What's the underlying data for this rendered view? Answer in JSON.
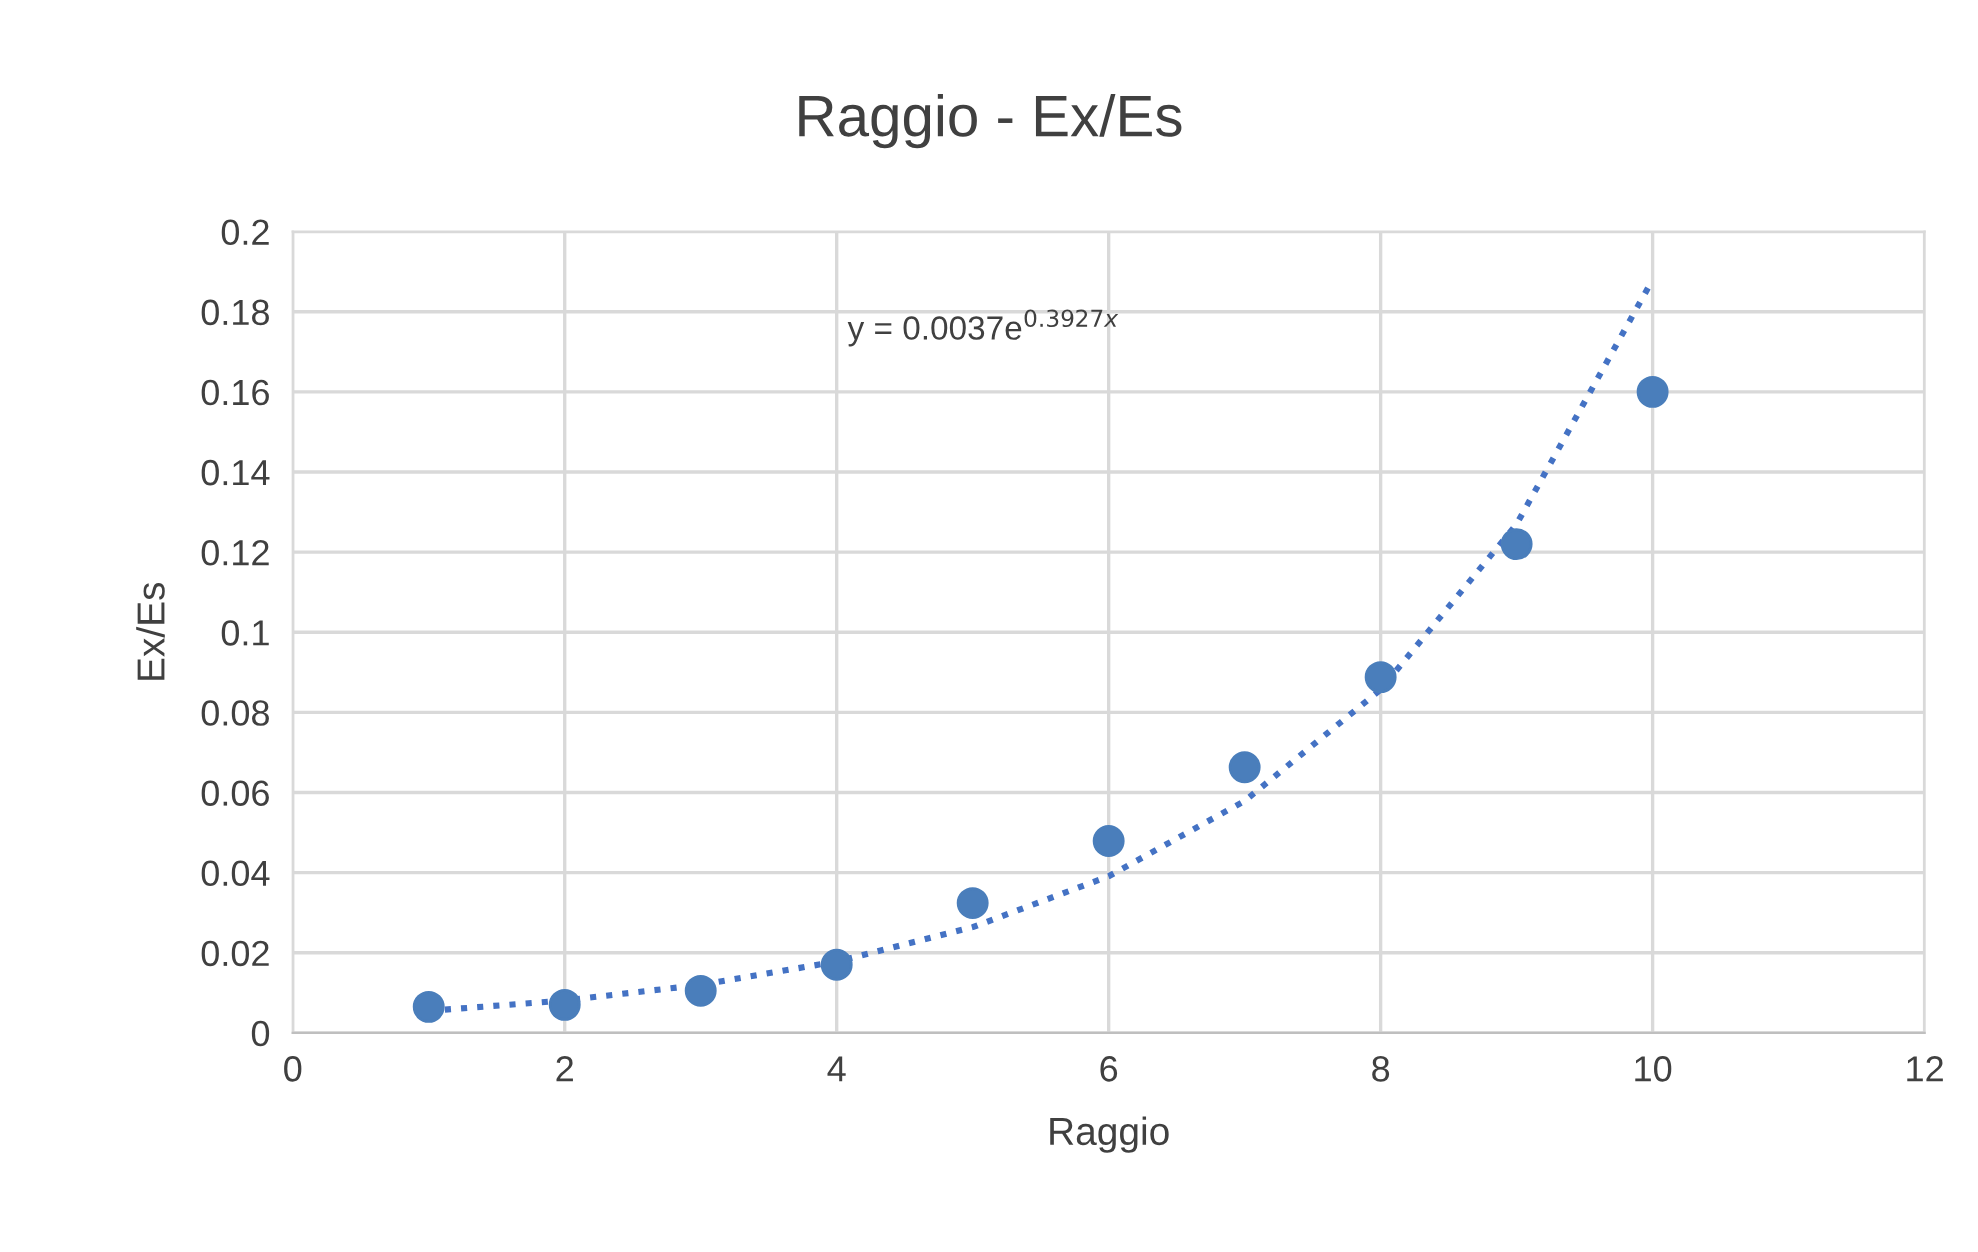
{
  "chart_data": {
    "type": "scatter",
    "title": "Raggio - Ex/Es",
    "xlabel": "Raggio",
    "ylabel": "Ex/Es",
    "annotations": [
      "y = 0.0037e$^{0.3927x}$"
    ],
    "x": [
      1,
      2,
      3,
      4,
      5,
      6,
      7,
      8,
      9,
      10
    ],
    "series": [
      {
        "color": "#4a7ebb",
        "marker": "circle",
        "values": [
          0.0065,
          0.007,
          0.0105,
          0.017,
          0.0324,
          0.0479,
          0.0663,
          0.0888,
          0.122,
          0.16
        ]
      },
      {
        "type": "line",
        "color": "#4472c4",
        "line_style": "dotted",
        "marker": "none",
        "x": [
          1,
          2,
          3,
          4,
          5,
          6,
          7,
          8,
          9,
          10
        ],
        "values": [
          0.0055,
          0.0081,
          0.012,
          0.0178,
          0.0264,
          0.0391,
          0.0579,
          0.0857,
          0.127,
          0.188
        ]
      }
    ],
    "xlim": [
      0,
      12
    ],
    "xticks": [
      0,
      2,
      4,
      6,
      8,
      10,
      12
    ],
    "ylim": [
      0,
      0.2
    ],
    "yticks": [
      0,
      0.02,
      0.04,
      0.06,
      0.08,
      0.1,
      0.12,
      0.14,
      0.16,
      0.18,
      0.2
    ],
    "grid": true,
    "legend": false
  }
}
